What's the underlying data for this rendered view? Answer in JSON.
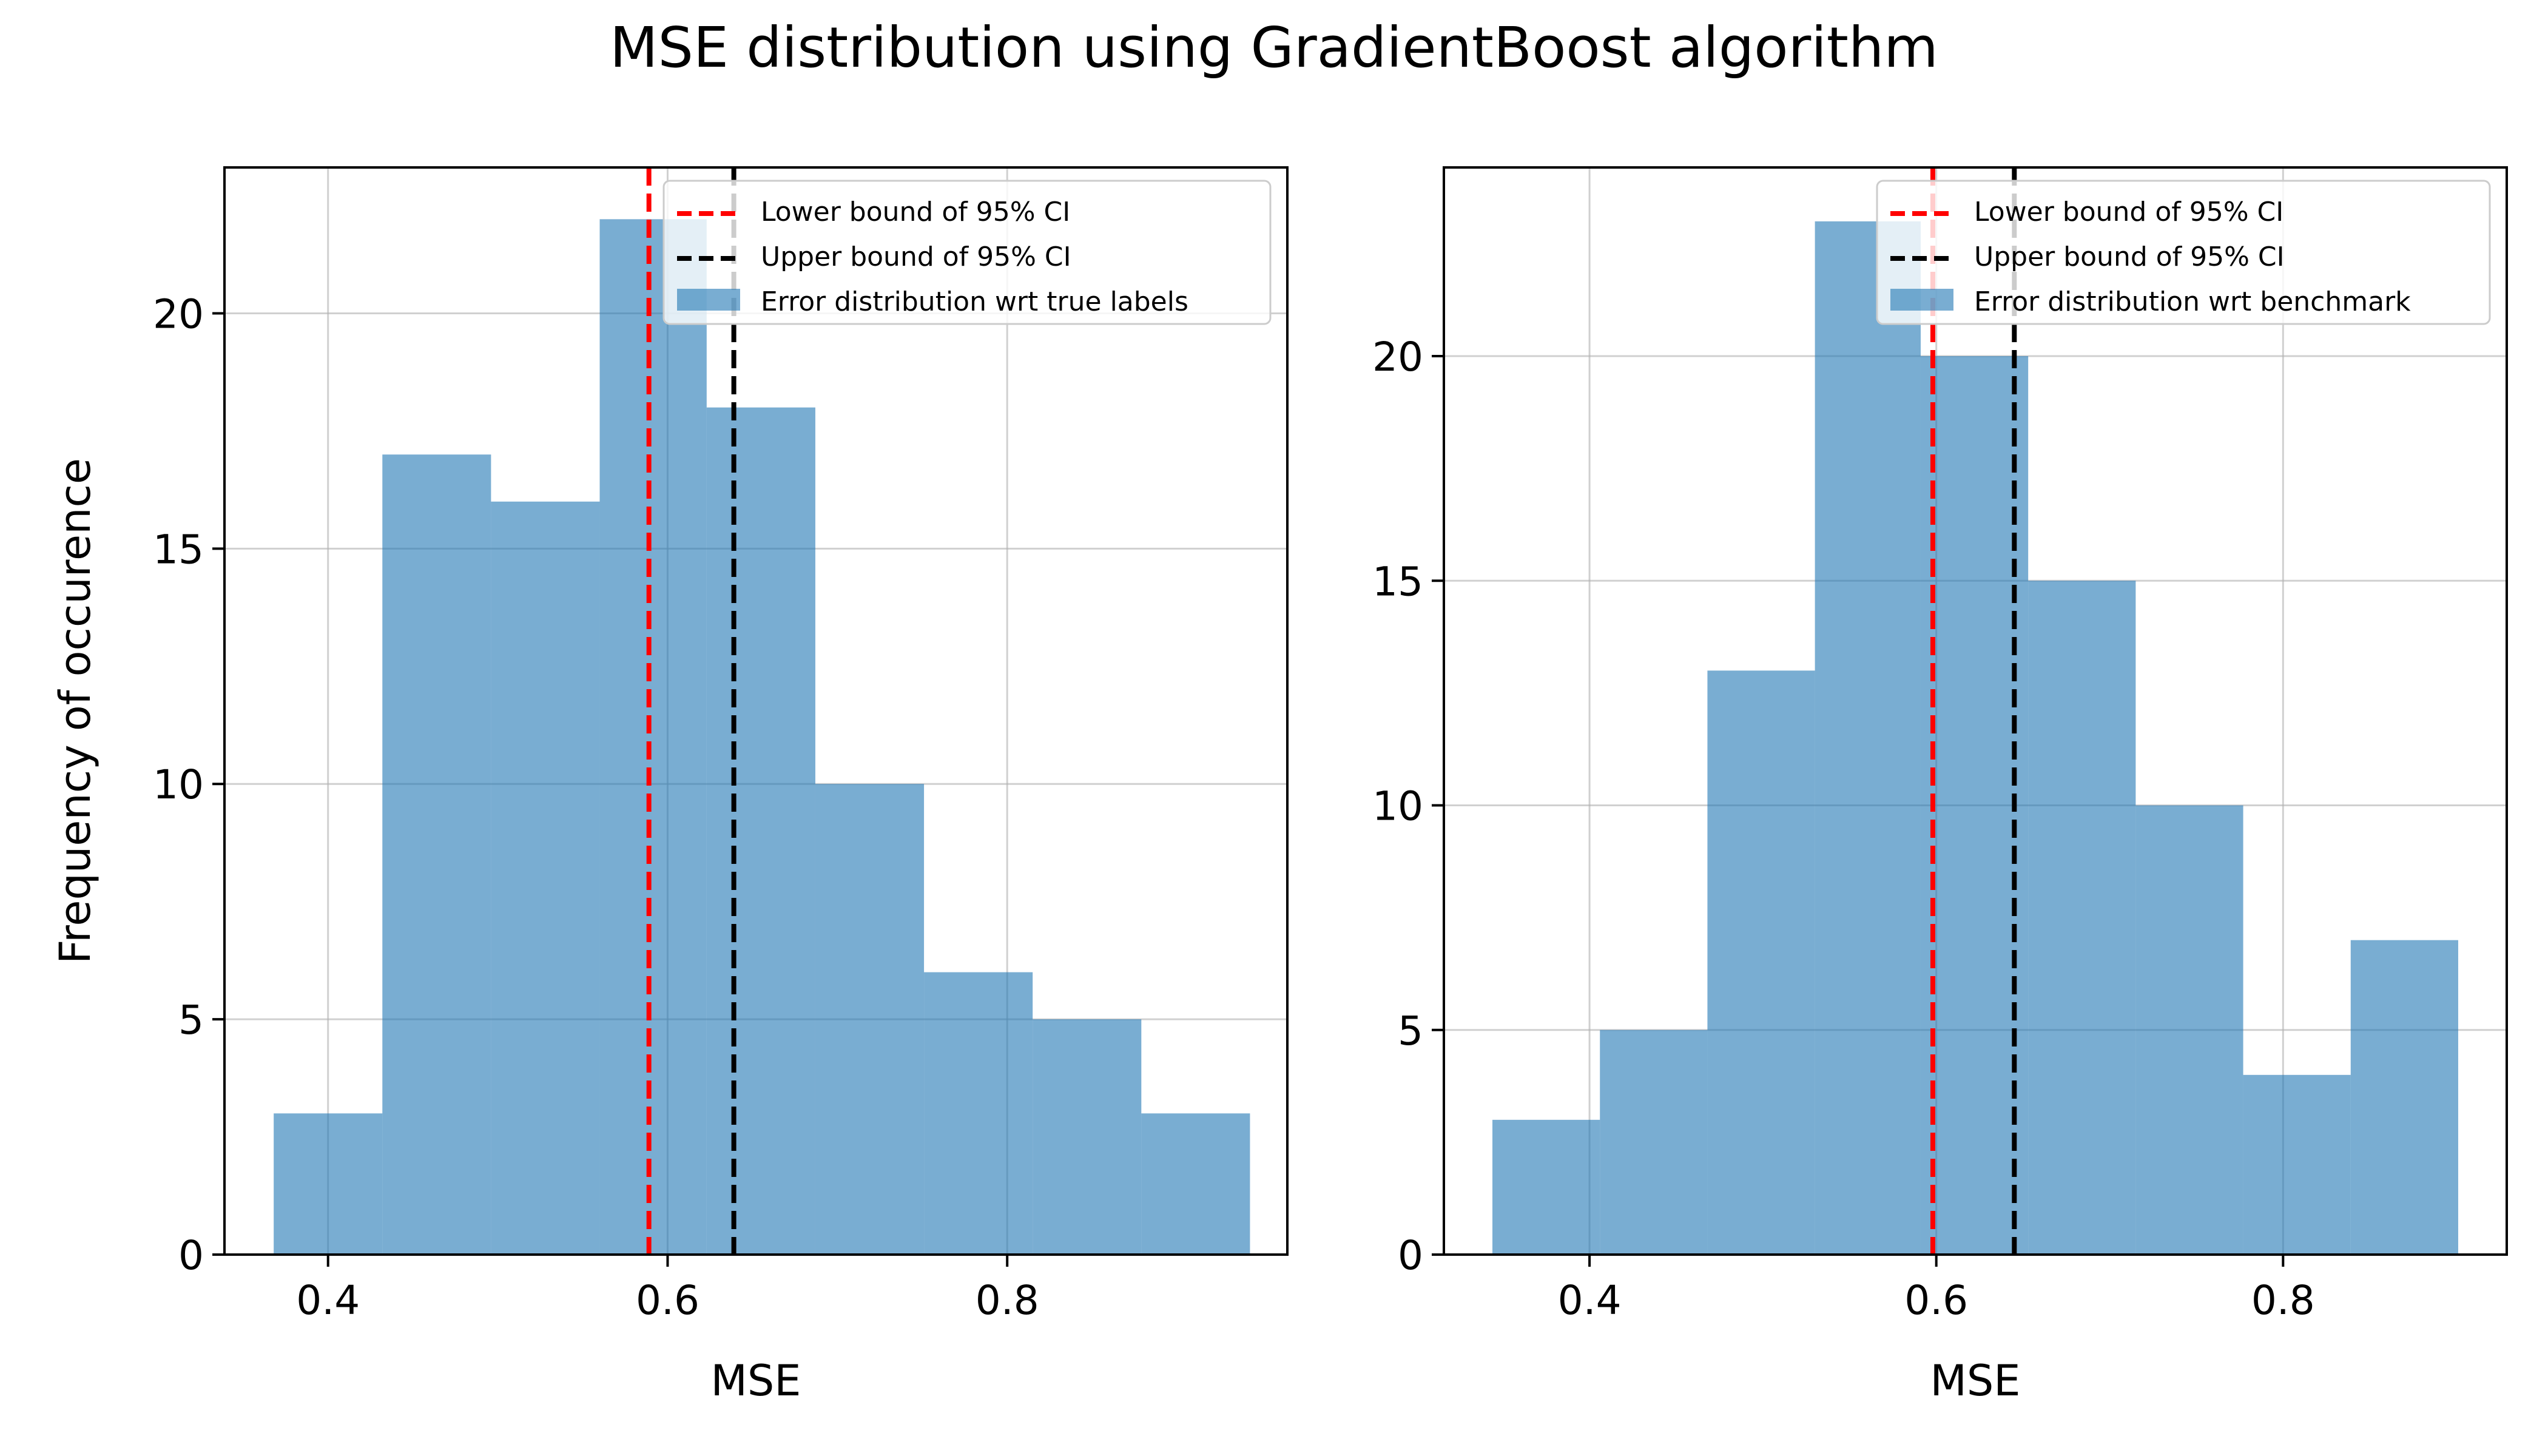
{
  "figure": {
    "suptitle": "MSE distribution using GradientBoost algorithm"
  },
  "chart_data": [
    {
      "type": "histogram",
      "xlabel": "MSE",
      "ylabel": "Frequency of occurence",
      "xlim": [
        0.339,
        0.965
      ],
      "ylim": [
        0,
        23.1
      ],
      "xticks": [
        "0.4",
        "0.6",
        "0.8"
      ],
      "yticks": [
        "0",
        "5",
        "10",
        "15",
        "20"
      ],
      "grid": true,
      "legend_position": "upper right",
      "bins": [
        {
          "x0": 0.368,
          "x1": 0.432,
          "count": 3
        },
        {
          "x0": 0.432,
          "x1": 0.496,
          "count": 17
        },
        {
          "x0": 0.496,
          "x1": 0.56,
          "count": 16
        },
        {
          "x0": 0.56,
          "x1": 0.623,
          "count": 22
        },
        {
          "x0": 0.623,
          "x1": 0.687,
          "count": 18
        },
        {
          "x0": 0.687,
          "x1": 0.751,
          "count": 10
        },
        {
          "x0": 0.751,
          "x1": 0.815,
          "count": 6
        },
        {
          "x0": 0.815,
          "x1": 0.879,
          "count": 5
        },
        {
          "x0": 0.879,
          "x1": 0.943,
          "count": 3
        }
      ],
      "vlines": [
        {
          "label": "Lower bound of 95% CI",
          "x": 0.589,
          "color": "#ff0000"
        },
        {
          "label": "Upper bound of 95% CI",
          "x": 0.639,
          "color": "#000000"
        }
      ],
      "hist_label": "Error distribution wrt true labels",
      "bar_color": "#1f77b4",
      "bar_alpha": 0.6
    },
    {
      "type": "histogram",
      "xlabel": "MSE",
      "ylabel": "",
      "xlim": [
        0.316,
        0.929
      ],
      "ylim": [
        0,
        24.2
      ],
      "xticks": [
        "0.4",
        "0.6",
        "0.8"
      ],
      "yticks": [
        "0",
        "5",
        "10",
        "15",
        "20"
      ],
      "grid": true,
      "legend_position": "upper right",
      "bins": [
        {
          "x0": 0.344,
          "x1": 0.406,
          "count": 3
        },
        {
          "x0": 0.406,
          "x1": 0.468,
          "count": 5
        },
        {
          "x0": 0.468,
          "x1": 0.53,
          "count": 13
        },
        {
          "x0": 0.53,
          "x1": 0.591,
          "count": 23
        },
        {
          "x0": 0.591,
          "x1": 0.653,
          "count": 20
        },
        {
          "x0": 0.653,
          "x1": 0.715,
          "count": 15
        },
        {
          "x0": 0.715,
          "x1": 0.777,
          "count": 10
        },
        {
          "x0": 0.777,
          "x1": 0.839,
          "count": 4
        },
        {
          "x0": 0.839,
          "x1": 0.901,
          "count": 7
        }
      ],
      "vlines": [
        {
          "label": "Lower bound of 95% CI",
          "x": 0.598,
          "color": "#ff0000"
        },
        {
          "label": "Upper bound of 95% CI",
          "x": 0.645,
          "color": "#000000"
        }
      ],
      "hist_label": "Error distribution wrt benchmark",
      "bar_color": "#1f77b4",
      "bar_alpha": 0.6
    }
  ]
}
